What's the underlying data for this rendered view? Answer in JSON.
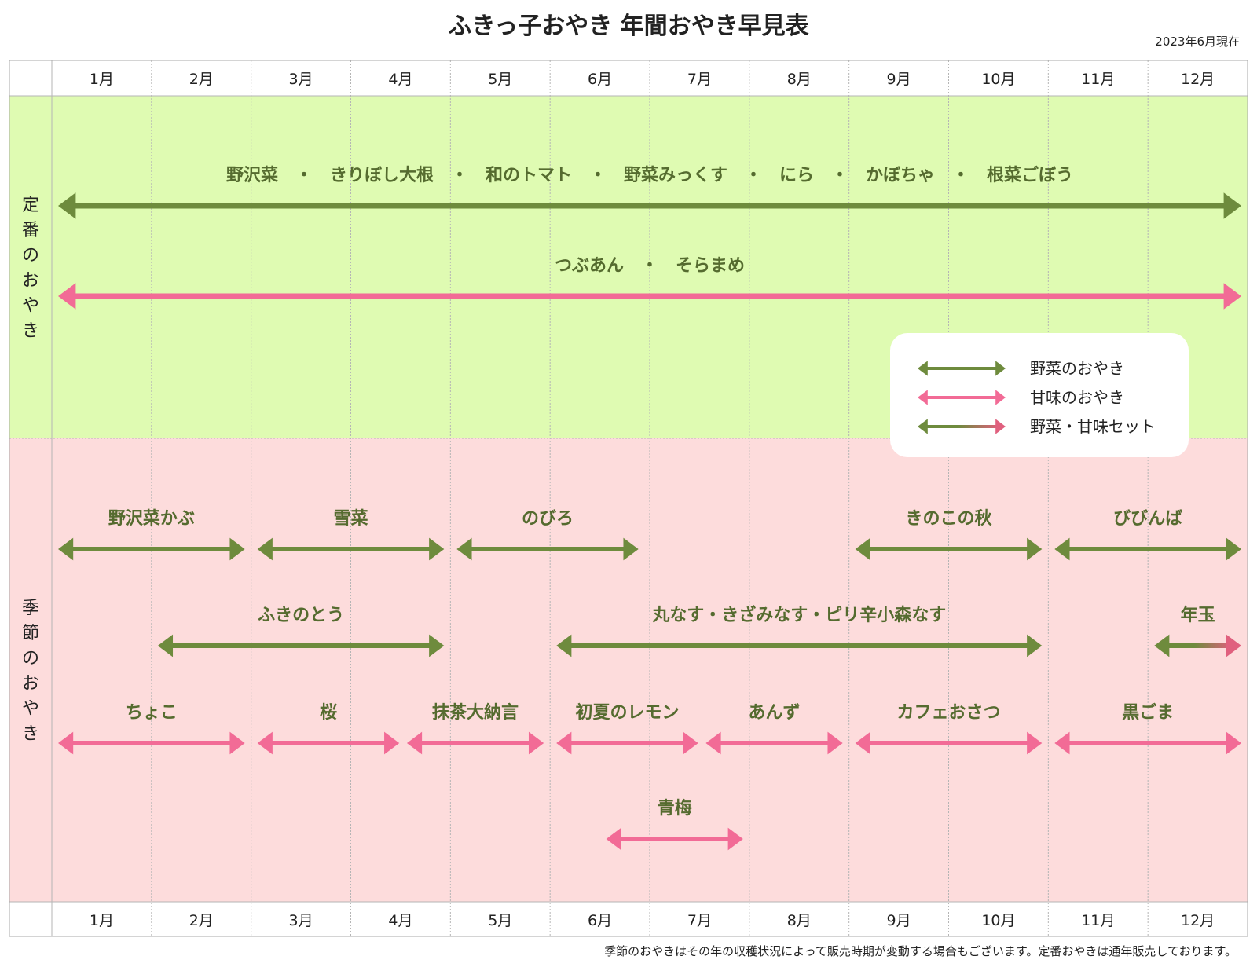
{
  "title": "ふきっ子おやき 年間おやき早見表",
  "as_of": "2023年6月現在",
  "months": [
    "1月",
    "2月",
    "3月",
    "4月",
    "5月",
    "6月",
    "7月",
    "8月",
    "9月",
    "10月",
    "11月",
    "12月"
  ],
  "rows": [
    {
      "label": "定番のおやき",
      "color": "#dffbb2"
    },
    {
      "label": "季節のおやき",
      "color": "#fddcdc"
    }
  ],
  "colors": {
    "vegetable": "#6e8b3d",
    "sweet": "#f26b96",
    "text": "#556b2f"
  },
  "legend": [
    {
      "type": "vegetable",
      "label": "野菜のおやき"
    },
    {
      "type": "sweet",
      "label": "甘味のおやき"
    },
    {
      "type": "set",
      "label": "野菜・甘味セット"
    }
  ],
  "items": [
    {
      "label": "野沢菜　・　きりぼし大根　・　和のトマト　・　野菜みっくす　・　にら　・　かぼちゃ　・　根菜ごぼう",
      "type": "vegetable",
      "start": 1,
      "end": 12.95
    },
    {
      "label": "つぶあん　・　そらまめ",
      "type": "sweet",
      "start": 1,
      "end": 12.95
    },
    {
      "label": "野沢菜かぶ",
      "type": "vegetable",
      "start": 1,
      "end": 2.95
    },
    {
      "label": "雪菜",
      "type": "vegetable",
      "start": 3,
      "end": 4.95
    },
    {
      "label": "のびろ",
      "type": "vegetable",
      "start": 5,
      "end": 6.9
    },
    {
      "label": "きのこの秋",
      "type": "vegetable",
      "start": 9,
      "end": 10.95
    },
    {
      "label": "びびんば",
      "type": "vegetable",
      "start": 11,
      "end": 12.95
    },
    {
      "label": "ふきのとう",
      "type": "vegetable",
      "start": 2,
      "end": 4.95
    },
    {
      "label": "丸なす・きざみなす・ピリ辛小森なす",
      "type": "vegetable",
      "start": 6,
      "end": 10.95
    },
    {
      "label": "年玉",
      "type": "set",
      "start": 12,
      "end": 12.95
    },
    {
      "label": "ちょこ",
      "type": "sweet",
      "start": 1,
      "end": 2.95
    },
    {
      "label": "桜",
      "type": "sweet",
      "start": 3,
      "end": 4.5
    },
    {
      "label": "抹茶大納言",
      "type": "sweet",
      "start": 4.5,
      "end": 5.95
    },
    {
      "label": "初夏のレモン",
      "type": "sweet",
      "start": 6,
      "end": 7.5
    },
    {
      "label": "あんず",
      "type": "sweet",
      "start": 7.5,
      "end": 8.95
    },
    {
      "label": "カフェおさつ",
      "type": "sweet",
      "start": 9,
      "end": 10.95
    },
    {
      "label": "黒ごま",
      "type": "sweet",
      "start": 11,
      "end": 12.95
    },
    {
      "label": "青梅",
      "type": "sweet",
      "start": 6.5,
      "end": 7.95
    }
  ],
  "footnote": "季節のおやきはその年の収穫状況によって販売時期が変動する場合もございます。定番おやきは通年販売しております。"
}
